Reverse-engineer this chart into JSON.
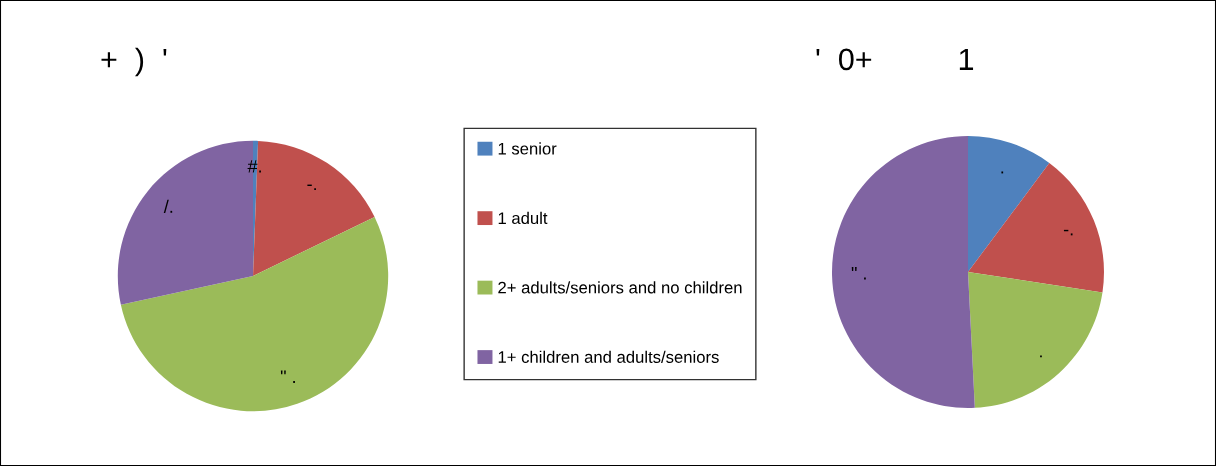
{
  "chart_data": [
    {
      "type": "pie",
      "title": "+  )  '",
      "categories": [
        "1 senior",
        "1 adult",
        "2+ adults/seniors and no children",
        "1+ children and adults/seniors"
      ],
      "values": [
        0.6,
        17.2,
        53.8,
        28.4
      ],
      "colors": [
        "#4f81bd",
        "#c0504d",
        "#9bbb59",
        "#8064a2"
      ],
      "value_labels": [
        "#.",
        "-.",
        "\" .",
        "/."
      ],
      "legend": "right"
    },
    {
      "type": "pie",
      "title": "'  0+          1",
      "categories": [
        null,
        null,
        null,
        null
      ],
      "values": [
        10.2,
        17.2,
        21.8,
        50.8
      ],
      "colors": [
        "#4f81bd",
        "#c0504d",
        "#9bbb59",
        "#8064a2"
      ],
      "value_labels": [
        ".",
        "-.",
        ".",
        "\" ."
      ]
    }
  ]
}
